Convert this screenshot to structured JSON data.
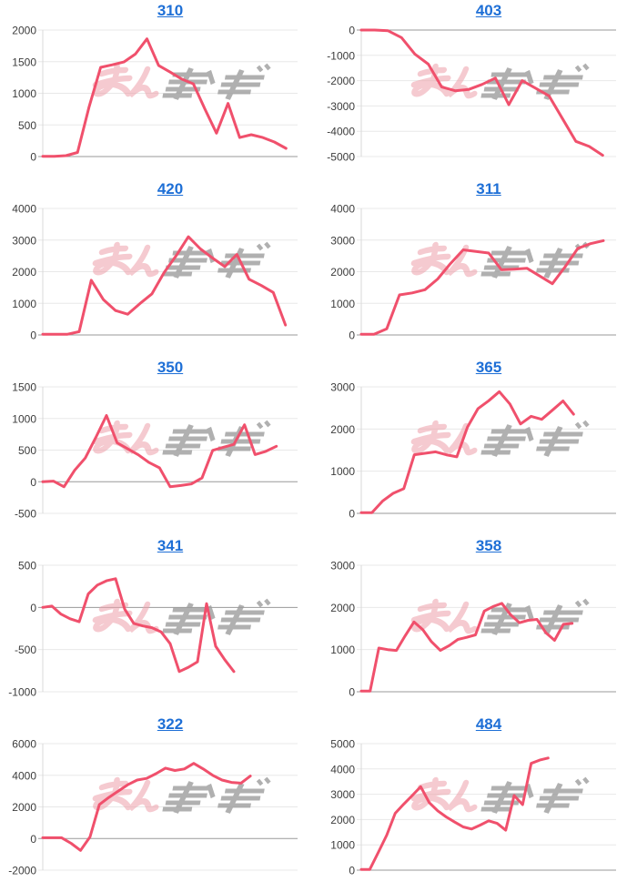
{
  "page": {
    "background": "#ffffff"
  },
  "watermark": {
    "text": "みんかぶ",
    "pink_segment": "みん",
    "gray_segment": "かぶ",
    "pink": "#eda0aa",
    "gray": "#9d9d9d"
  },
  "styles": {
    "line_color": "#f0506c",
    "title_color": "#1e6fd6",
    "grid_color": "#e8e8e8",
    "zero_line_color": "#999999",
    "axis_color": "#d9d9d9",
    "tick_label_color": "#3c3c3c"
  },
  "chart_data": [
    {
      "type": "line",
      "title": "310",
      "ylim": [
        0,
        2000
      ],
      "ytick": 500,
      "grid": true,
      "legend": "none",
      "x_slots": 23,
      "values": [
        5,
        5,
        15,
        65,
        785,
        1410,
        1450,
        1495,
        1620,
        1860,
        1440,
        1335,
        1225,
        1150,
        750,
        370,
        840,
        300,
        345,
        300,
        230,
        130
      ]
    },
    {
      "type": "line",
      "title": "403",
      "ylim": [
        -5000,
        0
      ],
      "ytick": 1000,
      "grid": true,
      "legend": "none",
      "x_slots": 20,
      "values": [
        0,
        0,
        -30,
        -300,
        -950,
        -1350,
        -2250,
        -2400,
        -2350,
        -2150,
        -1900,
        -2950,
        -2000,
        -2300,
        -2600,
        -3500,
        -4400,
        -4600,
        -4950
      ]
    },
    {
      "type": "line",
      "title": "420",
      "ylim": [
        0,
        4000
      ],
      "ytick": 1000,
      "grid": true,
      "legend": "none",
      "x_slots": 22,
      "values": [
        20,
        20,
        20,
        105,
        1730,
        1115,
        770,
        655,
        990,
        1300,
        1970,
        2510,
        3105,
        2720,
        2430,
        2160,
        2545,
        1760,
        1565,
        1345,
        315
      ]
    },
    {
      "type": "line",
      "title": "311",
      "ylim": [
        0,
        4000
      ],
      "ytick": 1000,
      "grid": true,
      "legend": "none",
      "x_slots": 21,
      "values": [
        20,
        20,
        195,
        1265,
        1330,
        1430,
        1770,
        2255,
        2690,
        2640,
        2590,
        2060,
        2080,
        2110,
        1865,
        1620,
        2155,
        2740,
        2885,
        2980
      ]
    },
    {
      "type": "line",
      "title": "350",
      "ylim": [
        -500,
        1500
      ],
      "ytick": 500,
      "grid": true,
      "legend": "none",
      "x_slots": 25,
      "values": [
        0,
        10,
        -80,
        180,
        375,
        700,
        1047,
        615,
        520,
        425,
        305,
        220,
        -80,
        -60,
        -35,
        60,
        495,
        545,
        590,
        900,
        430,
        480,
        560
      ]
    },
    {
      "type": "line",
      "title": "365",
      "ylim": [
        0,
        3000
      ],
      "ytick": 1000,
      "grid": true,
      "legend": "none",
      "x_slots": 25,
      "values": [
        15,
        15,
        290,
        475,
        585,
        1390,
        1425,
        1460,
        1390,
        1340,
        2045,
        2485,
        2670,
        2885,
        2595,
        2120,
        2300,
        2230,
        2445,
        2665,
        2350
      ]
    },
    {
      "type": "line",
      "title": "341",
      "ylim": [
        -1000,
        500
      ],
      "ytick": 500,
      "grid": true,
      "legend": "none",
      "x_slots": 29,
      "values": [
        0,
        15,
        -80,
        -135,
        -170,
        160,
        265,
        315,
        340,
        -20,
        -190,
        -220,
        -240,
        -290,
        -430,
        -760,
        -710,
        -645,
        45,
        -460,
        -620,
        -760
      ]
    },
    {
      "type": "line",
      "title": "358",
      "ylim": [
        0,
        3000
      ],
      "ytick": 1000,
      "grid": true,
      "legend": "none",
      "x_slots": 30,
      "values": [
        15,
        15,
        1035,
        1000,
        980,
        1330,
        1655,
        1475,
        1185,
        980,
        1095,
        1240,
        1290,
        1350,
        1915,
        2020,
        2095,
        1825,
        1635,
        1695,
        1715,
        1400,
        1220,
        1600,
        1620
      ]
    },
    {
      "type": "line",
      "title": "322",
      "ylim": [
        -2000,
        6000
      ],
      "ytick": 2000,
      "grid": true,
      "legend": "none",
      "x_slots": 28,
      "values": [
        50,
        50,
        50,
        -300,
        -750,
        100,
        2150,
        2600,
        3000,
        3400,
        3700,
        3800,
        4100,
        4450,
        4300,
        4400,
        4750,
        4400,
        4000,
        3700,
        3550,
        3500,
        3950
      ]
    },
    {
      "type": "line",
      "title": "484",
      "ylim": [
        0,
        5000
      ],
      "ytick": 1000,
      "grid": true,
      "legend": "none",
      "x_slots": 31,
      "values": [
        25,
        25,
        700,
        1385,
        2250,
        2610,
        2950,
        3300,
        2670,
        2345,
        2105,
        1900,
        1710,
        1625,
        1780,
        1950,
        1850,
        1580,
        2950,
        2590,
        4220,
        4350,
        4430
      ]
    }
  ]
}
